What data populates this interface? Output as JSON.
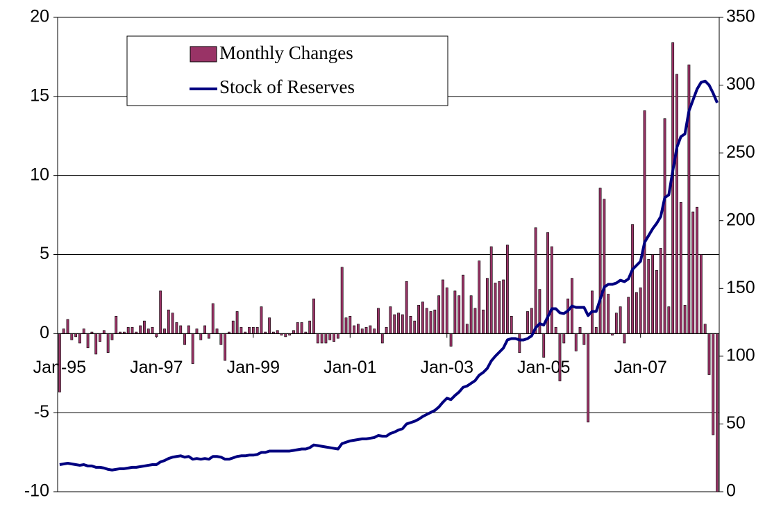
{
  "chart_data": {
    "type": "combo",
    "categories": [
      "Jan-95",
      null,
      null,
      null,
      null,
      null,
      null,
      null,
      null,
      null,
      null,
      null,
      null,
      null,
      null,
      null,
      null,
      null,
      null,
      null,
      null,
      null,
      null,
      null,
      "Jan-97",
      null,
      null,
      null,
      null,
      null,
      null,
      null,
      null,
      null,
      null,
      null,
      null,
      null,
      null,
      null,
      null,
      null,
      null,
      null,
      null,
      null,
      null,
      null,
      "Jan-99",
      null,
      null,
      null,
      null,
      null,
      null,
      null,
      null,
      null,
      null,
      null,
      null,
      null,
      null,
      null,
      null,
      null,
      null,
      null,
      null,
      null,
      null,
      null,
      "Jan-01",
      null,
      null,
      null,
      null,
      null,
      null,
      null,
      null,
      null,
      null,
      null,
      null,
      null,
      null,
      null,
      null,
      null,
      null,
      null,
      null,
      null,
      null,
      null,
      "Jan-03",
      null,
      null,
      null,
      null,
      null,
      null,
      null,
      null,
      null,
      null,
      null,
      null,
      null,
      null,
      null,
      null,
      null,
      null,
      null,
      null,
      null,
      null,
      null,
      "Jan-05",
      null,
      null,
      null,
      null,
      null,
      null,
      null,
      null,
      null,
      null,
      null,
      null,
      null,
      null,
      null,
      null,
      null,
      null,
      null,
      null,
      null,
      null,
      null,
      "Jan-07",
      null,
      null,
      null,
      null,
      null,
      null,
      null,
      null,
      null,
      null,
      null,
      null,
      null,
      null,
      null,
      null,
      null,
      null,
      null
    ],
    "series": [
      {
        "name": "Monthly Changes",
        "type": "bar",
        "color": "#993366",
        "values": [
          -3.7,
          0.3,
          0.9,
          -0.4,
          -0.2,
          -0.6,
          0.3,
          -0.9,
          0.1,
          -1.3,
          -0.5,
          0.2,
          -1.2,
          -0.4,
          1.1,
          0.1,
          0.1,
          0.4,
          0.4,
          0.1,
          0.5,
          0.8,
          0.3,
          0.4,
          -0.2,
          2.7,
          0.3,
          1.5,
          1.3,
          0.7,
          0.5,
          -0.7,
          0.5,
          -1.9,
          0.3,
          -0.4,
          0.5,
          -0.3,
          1.9,
          0.3,
          -0.7,
          -1.7,
          0.1,
          0.8,
          1.4,
          0.4,
          0.1,
          0.4,
          0.4,
          0.4,
          1.7,
          0.1,
          1.0,
          0.1,
          0.2,
          -0.1,
          -0.2,
          -0.1,
          0.2,
          0.7,
          0.7,
          0.1,
          0.8,
          2.2,
          -0.6,
          -0.6,
          -0.6,
          -0.4,
          -0.5,
          -0.3,
          4.2,
          1.0,
          1.1,
          0.5,
          0.6,
          0.3,
          0.4,
          0.5,
          0.3,
          1.6,
          -0.6,
          0.4,
          1.7,
          1.2,
          1.3,
          1.2,
          3.3,
          1.1,
          0.8,
          1.8,
          2.0,
          1.6,
          1.4,
          1.5,
          2.4,
          3.4,
          2.9,
          -0.8,
          2.7,
          2.4,
          3.7,
          0.6,
          2.4,
          1.6,
          4.6,
          1.5,
          3.5,
          5.5,
          3.2,
          3.3,
          3.4,
          5.6,
          1.1,
          0.0,
          -1.2,
          0.0,
          1.4,
          1.6,
          6.7,
          2.8,
          -1.5,
          6.4,
          5.5,
          0.4,
          -3.0,
          -0.6,
          2.2,
          3.5,
          -1.1,
          0.4,
          -0.7,
          -5.6,
          2.7,
          0.4,
          9.2,
          8.5,
          2.5,
          -0.1,
          1.3,
          1.7,
          -0.6,
          2.3,
          6.9,
          2.6,
          2.9,
          14.1,
          4.7,
          5.0,
          4.0,
          5.4,
          13.6,
          1.7,
          18.4,
          16.4,
          8.3,
          1.8,
          17.0,
          7.7,
          8.0,
          5.0,
          0.6,
          -2.6,
          -6.4,
          -10.0
        ]
      },
      {
        "name": "Stock of Reserves",
        "type": "line",
        "color": "#000080",
        "axis": "y2",
        "values": [
          20,
          20.5,
          21,
          20.5,
          20,
          19.5,
          20,
          19,
          19,
          18,
          18,
          17.5,
          16.5,
          16,
          16.5,
          17,
          17,
          17.5,
          18,
          18,
          18.5,
          19,
          19.5,
          20,
          20,
          22,
          23,
          24.5,
          25.5,
          26,
          26.5,
          25.5,
          26,
          24,
          24.5,
          24,
          24.5,
          24,
          26,
          26,
          25.5,
          24,
          24,
          25,
          26,
          26.5,
          26.5,
          27,
          27,
          27.5,
          29,
          29,
          30,
          30,
          30,
          30,
          30,
          30,
          30.5,
          31,
          31.5,
          31.5,
          32.5,
          34.5,
          34,
          33.5,
          33,
          32.5,
          32,
          31.5,
          35.5,
          36.5,
          37.5,
          38,
          38.5,
          39,
          39,
          39.5,
          40,
          41.5,
          41,
          41,
          43,
          44,
          45.5,
          46.5,
          50,
          51,
          52,
          53.5,
          55.5,
          57,
          58.5,
          60,
          62.5,
          66,
          69,
          68,
          71,
          73.5,
          77,
          78,
          80,
          82,
          86,
          88,
          91,
          96.5,
          100,
          103,
          106,
          112,
          113,
          113,
          112,
          112,
          113,
          115,
          121,
          124,
          123,
          129,
          135,
          135,
          132,
          131.5,
          133.5,
          137,
          136,
          136,
          136,
          130,
          133,
          133,
          142,
          151,
          153,
          153,
          154,
          156,
          155,
          157,
          164,
          167,
          170,
          184,
          189,
          194,
          198,
          203,
          217,
          219,
          237,
          254,
          262,
          264,
          281,
          289,
          297,
          302,
          303,
          300,
          294,
          287
        ]
      }
    ],
    "ylim": [
      -10,
      20
    ],
    "yticks": [
      -10,
      -5,
      0,
      5,
      10,
      15,
      20
    ],
    "y2lim": [
      0,
      350
    ],
    "y2ticks": [
      0,
      50,
      100,
      150,
      200,
      250,
      300,
      350
    ],
    "grid": true,
    "legend": "top-left"
  }
}
